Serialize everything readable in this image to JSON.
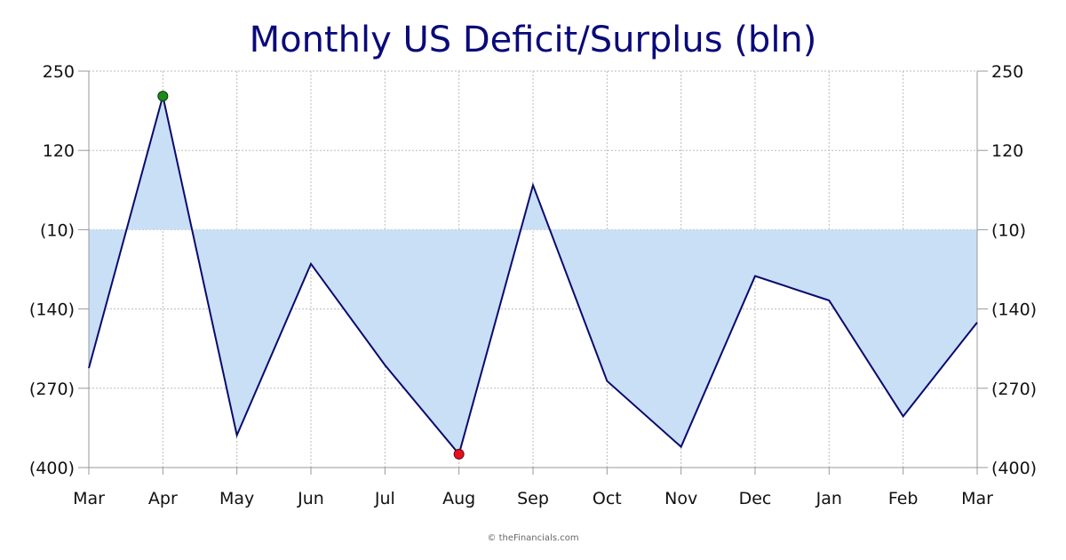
{
  "chart_data": {
    "type": "area",
    "title": "Monthly US Deficit/Surplus (bln)",
    "xlabel": "",
    "ylabel": "",
    "categories": [
      "Mar",
      "Apr",
      "May",
      "Jun",
      "Jul",
      "Aug",
      "Sep",
      "Oct",
      "Nov",
      "Dec",
      "Jan",
      "Feb",
      "Mar"
    ],
    "values": [
      -237,
      209,
      -347,
      -66,
      -232,
      -378,
      63,
      -258,
      -366,
      -86,
      -126,
      -316,
      -162
    ],
    "baseline": -10,
    "ylim": [
      -400,
      250
    ],
    "yticks": [
      250,
      120,
      -10,
      -140,
      -270,
      -400
    ],
    "ytick_labels": [
      "250",
      "120",
      "(10)",
      "(140)",
      "(270)",
      "(400)"
    ],
    "y_axis_sides": [
      "left",
      "right"
    ],
    "grid": true,
    "highlight_max": {
      "category_index": 1,
      "color": "#1a8a1a"
    },
    "highlight_min": {
      "category_index": 5,
      "color": "#e8101e"
    },
    "colors": {
      "line": "#0a0a6e",
      "fill": "#c8dff6",
      "grid": "#bbbbbb",
      "axis": "#999999",
      "title": "#0a0a7a"
    },
    "credit": "© theFinancials.com"
  }
}
